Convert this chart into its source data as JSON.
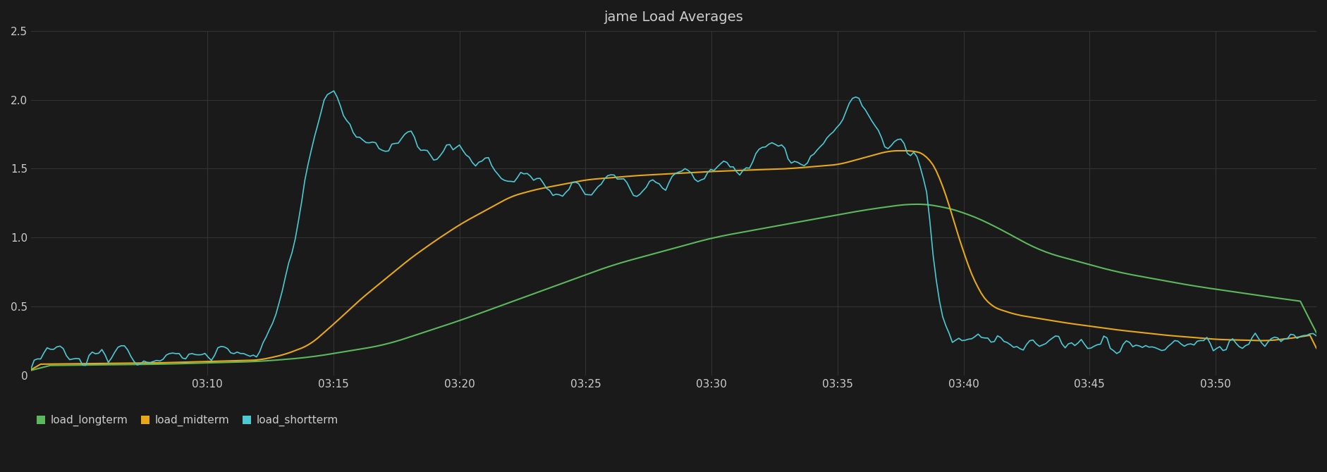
{
  "title": "jame Load Averages",
  "background_color": "#1a1a1a",
  "grid_color": "#333333",
  "text_color": "#cccccc",
  "ylim": [
    0,
    2.5
  ],
  "yticks": [
    0,
    0.5,
    1.0,
    1.5,
    2.0,
    2.5
  ],
  "xlim": [
    3.0,
    54.0
  ],
  "xtick_labels": [
    "03:10",
    "03:15",
    "03:20",
    "03:25",
    "03:30",
    "03:35",
    "03:40",
    "03:45",
    "03:50"
  ],
  "xtick_positions": [
    10,
    15,
    20,
    25,
    30,
    35,
    40,
    45,
    50
  ],
  "series": {
    "load_longterm": {
      "color": "#5cb85c",
      "label": "load_longterm"
    },
    "load_midterm": {
      "color": "#e6a817",
      "label": "load_midterm"
    },
    "load_shortterm": {
      "color": "#4dc9d4",
      "label": "load_shortterm"
    }
  }
}
